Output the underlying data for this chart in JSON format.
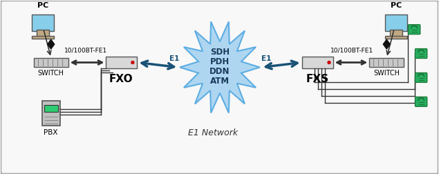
{
  "bg_color": "#f5f5f5",
  "border_color": "#888888",
  "title_text": "E1 Network",
  "fxo_label": "FXO",
  "fxs_label": "FXS",
  "switch_left_label": "SWITCH",
  "switch_right_label": "SWITCH",
  "pbx_label": "PBX",
  "pc_left_label": "PC",
  "pc_right_label": "PC",
  "e1_label_left": "E1",
  "e1_label_right": "E1",
  "fe1_label_left": "10/100BT-FE1",
  "fe1_label_right": "10/100BT-FE1",
  "cloud_text": [
    "SDH",
    "PDH",
    "DDN",
    "ATM"
  ],
  "cloud_color": "#aed6f1",
  "cloud_border": "#5dade2",
  "arrow_color": "#1a5276",
  "line_color": "#333333",
  "label_color": "#000000",
  "phone_color": "#27ae60"
}
